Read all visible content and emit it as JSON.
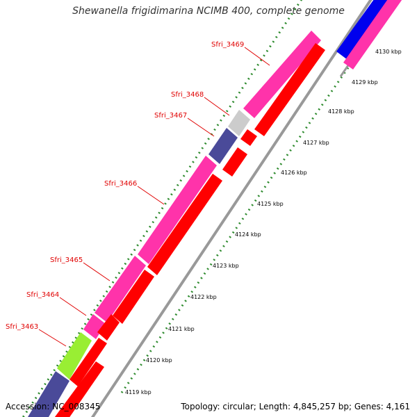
{
  "title": "Shewanella frigidimarina NCIMB 400, complete genome",
  "footer": {
    "accession": "Accession: NC_008345",
    "summary": "Topology: circular; Length: 4,845,257 bp; Genes: 4,161"
  },
  "kbp_labels": [
    "4119 kbp",
    "4120 kbp",
    "4121 kbp",
    "4122 kbp",
    "4123 kbp",
    "4124 kbp",
    "4125 kbp",
    "4126 kbp",
    "4127 kbp",
    "4128 kbp",
    "4129 kbp",
    "4130 kbp"
  ],
  "gene_labels": [
    "Sfri_3463",
    "Sfri_3464",
    "Sfri_3465",
    "Sfri_3466",
    "Sfri_3467",
    "Sfri_3468",
    "Sfri_3469"
  ],
  "colors": {
    "cds": "#ff0000",
    "gene_pink": "#ff33aa",
    "gene_purple": "#4a4a99",
    "gene_green": "#99ee33",
    "gene_gray": "#cccccc",
    "gene_blue": "#0000ee",
    "backbone": "#999999",
    "ticks": "#2e8b2e",
    "labels": "#e00000"
  }
}
